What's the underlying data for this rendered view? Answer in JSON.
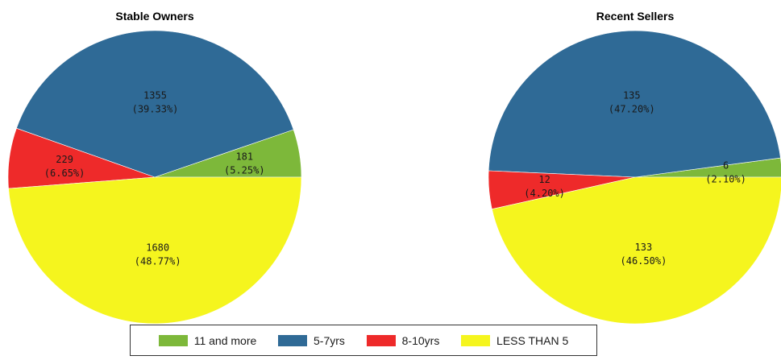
{
  "chart_data": [
    {
      "type": "pie",
      "title": "Stable Owners",
      "slices": [
        {
          "category": "11 and more",
          "value": 181,
          "percent_label": "(5.25%)"
        },
        {
          "category": "5-7yrs",
          "value": 1355,
          "percent_label": "(39.33%)"
        },
        {
          "category": "8-10yrs",
          "value": 229,
          "percent_label": "(6.65%)"
        },
        {
          "category": "LESS THAN 5",
          "value": 1680,
          "percent_label": "(48.77%)"
        }
      ]
    },
    {
      "type": "pie",
      "title": "Recent Sellers",
      "slices": [
        {
          "category": "11 and more",
          "value": 6,
          "percent_label": "(2.10%)"
        },
        {
          "category": "5-7yrs",
          "value": 135,
          "percent_label": "(47.20%)"
        },
        {
          "category": "8-10yrs",
          "value": 12,
          "percent_label": "(4.20%)"
        },
        {
          "category": "LESS THAN 5",
          "value": 133,
          "percent_label": "(46.50%)"
        }
      ]
    }
  ],
  "legend": {
    "placement": "bottom-center",
    "items": [
      {
        "label": "11 and more",
        "color": "#7db83a"
      },
      {
        "label": "5-7yrs",
        "color": "#2f6a96"
      },
      {
        "label": "8-10yrs",
        "color": "#ee2a2a"
      },
      {
        "label": "LESS THAN 5",
        "color": "#f5f51e"
      }
    ]
  }
}
